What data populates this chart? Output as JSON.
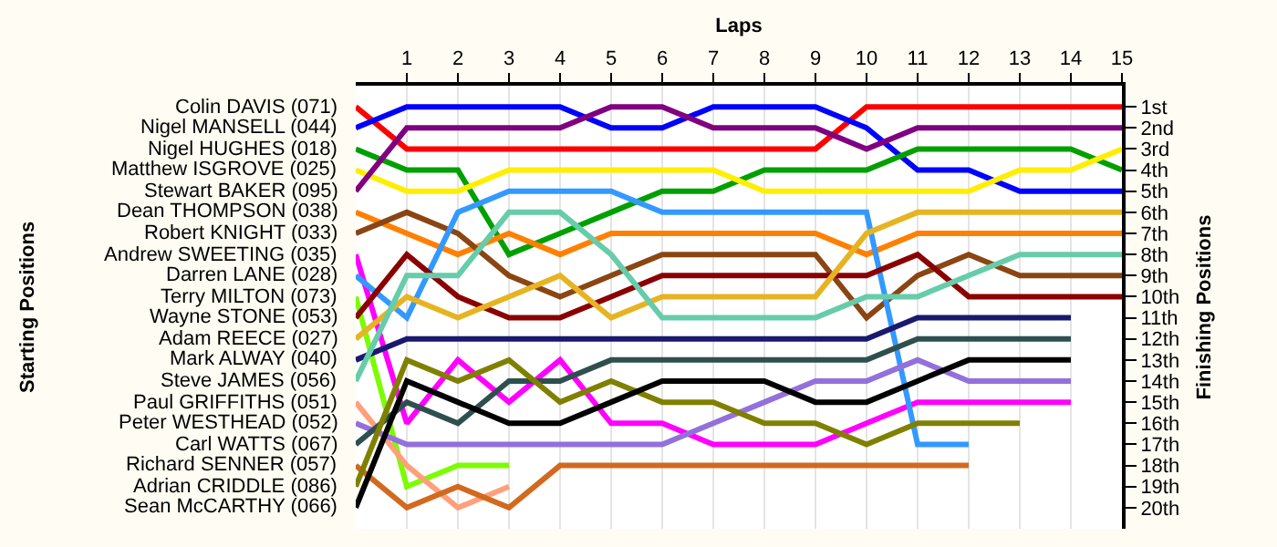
{
  "chart_data": {
    "type": "line",
    "xlabel": "Laps",
    "annotations": [
      "Starting Positions"
    ],
    "y2label": "Finishing Positions",
    "x": [
      0,
      1,
      2,
      3,
      4,
      5,
      6,
      7,
      8,
      9,
      10,
      11,
      12,
      13,
      14,
      15
    ],
    "xlim": [
      0,
      15
    ],
    "xticks": [
      1,
      2,
      3,
      4,
      5,
      6,
      7,
      8,
      9,
      10,
      11,
      12,
      13,
      14,
      15
    ],
    "y2lim": [
      21,
      0
    ],
    "y2ticks": [
      {
        "value": 1,
        "label": "1st"
      },
      {
        "value": 2,
        "label": "2nd"
      },
      {
        "value": 3,
        "label": "3rd"
      },
      {
        "value": 4,
        "label": "4th"
      },
      {
        "value": 5,
        "label": "5th"
      },
      {
        "value": 6,
        "label": "6th"
      },
      {
        "value": 7,
        "label": "7th"
      },
      {
        "value": 8,
        "label": "8th"
      },
      {
        "value": 9,
        "label": "9th"
      },
      {
        "value": 10,
        "label": "10th"
      },
      {
        "value": 11,
        "label": "11th"
      },
      {
        "value": 12,
        "label": "12th"
      },
      {
        "value": 13,
        "label": "13th"
      },
      {
        "value": 14,
        "label": "14th"
      },
      {
        "value": 15,
        "label": "15th"
      },
      {
        "value": 16,
        "label": "16th"
      },
      {
        "value": 17,
        "label": "17th"
      },
      {
        "value": 18,
        "label": "18th"
      },
      {
        "value": 19,
        "label": "19th"
      },
      {
        "value": 20,
        "label": "20th"
      }
    ],
    "grid": true,
    "series": [
      {
        "name": "Colin DAVIS (071)",
        "axis": "y2",
        "color": "#ff0000",
        "values": [
          1,
          3,
          3,
          3,
          3,
          3,
          3,
          3,
          3,
          3,
          1,
          1,
          1,
          1,
          1,
          1
        ]
      },
      {
        "name": "Nigel MANSELL (044)",
        "axis": "y2",
        "color": "#0000ff",
        "values": [
          2,
          1,
          1,
          1,
          1,
          2,
          2,
          1,
          1,
          1,
          2,
          4,
          4,
          5,
          5,
          5
        ]
      },
      {
        "name": "Nigel HUGHES (018)",
        "axis": "y2",
        "color": "#00a000",
        "values": [
          3,
          4,
          4,
          8,
          7,
          6,
          5,
          5,
          4,
          4,
          4,
          3,
          3,
          3,
          3,
          4
        ]
      },
      {
        "name": "Matthew ISGROVE (025)",
        "axis": "y2",
        "color": "#ffee00",
        "values": [
          4,
          5,
          5,
          4,
          4,
          4,
          4,
          4,
          5,
          5,
          5,
          5,
          5,
          4,
          4,
          3
        ]
      },
      {
        "name": "Stewart BAKER (095)",
        "axis": "y2",
        "color": "#800080",
        "values": [
          5,
          2,
          2,
          2,
          2,
          1,
          1,
          2,
          2,
          2,
          3,
          2,
          2,
          2,
          2,
          2
        ]
      },
      {
        "name": "Dean THOMPSON (038)",
        "axis": "y2",
        "color": "#ff8000",
        "values": [
          6,
          7,
          8,
          7,
          8,
          7,
          7,
          7,
          7,
          7,
          8,
          7,
          7,
          7,
          7,
          7
        ]
      },
      {
        "name": "Robert KNIGHT (033)",
        "axis": "y2",
        "color": "#8b4513",
        "values": [
          7,
          6,
          7,
          9,
          10,
          9,
          8,
          8,
          8,
          8,
          11,
          9,
          8,
          9,
          9,
          9
        ]
      },
      {
        "name": "Andrew SWEETING (035)",
        "axis": "y2",
        "color": "#ff00ff",
        "values": [
          8,
          16,
          13,
          15,
          13,
          16,
          16,
          17,
          17,
          17,
          16,
          15,
          15,
          15,
          15,
          null
        ]
      },
      {
        "name": "Darren LANE (028)",
        "axis": "y2",
        "color": "#3399ff",
        "values": [
          9,
          11,
          6,
          5,
          5,
          5,
          6,
          6,
          6,
          6,
          6,
          17,
          17,
          null,
          null,
          null
        ]
      },
      {
        "name": "Terry MILTON (073)",
        "axis": "y2",
        "color": "#7cfc00",
        "values": [
          10,
          19,
          18,
          18,
          null,
          null,
          null,
          null,
          null,
          null,
          null,
          null,
          null,
          null,
          null,
          null
        ]
      },
      {
        "name": "Wayne STONE (053)",
        "axis": "y2",
        "color": "#8b0000",
        "values": [
          11,
          8,
          10,
          11,
          11,
          10,
          9,
          9,
          9,
          9,
          9,
          8,
          10,
          10,
          10,
          10
        ]
      },
      {
        "name": "Adam REECE (027)",
        "axis": "y2",
        "color": "#e6b422",
        "values": [
          12,
          10,
          11,
          10,
          9,
          11,
          10,
          10,
          10,
          10,
          7,
          6,
          6,
          6,
          6,
          6
        ]
      },
      {
        "name": "Mark ALWAY (040)",
        "axis": "y2",
        "color": "#191970",
        "values": [
          13,
          12,
          12,
          12,
          12,
          12,
          12,
          12,
          12,
          12,
          12,
          11,
          11,
          11,
          11,
          null
        ]
      },
      {
        "name": "Steve JAMES (056)",
        "axis": "y2",
        "color": "#66ccaa",
        "values": [
          14,
          9,
          9,
          6,
          6,
          8,
          11,
          11,
          11,
          11,
          10,
          10,
          9,
          8,
          8,
          8
        ]
      },
      {
        "name": "Paul GRIFFITHS (051)",
        "axis": "y2",
        "color": "#ffa07a",
        "values": [
          15,
          18,
          20,
          19,
          null,
          null,
          null,
          null,
          null,
          null,
          null,
          null,
          null,
          null,
          null,
          null
        ]
      },
      {
        "name": "Peter WESTHEAD (052)",
        "axis": "y2",
        "color": "#9370db",
        "values": [
          16,
          17,
          17,
          17,
          17,
          17,
          17,
          16,
          15,
          14,
          14,
          13,
          14,
          14,
          14,
          null
        ]
      },
      {
        "name": "Carl WATTS (067)",
        "axis": "y2",
        "color": "#2f4f4f",
        "values": [
          17,
          15,
          16,
          14,
          14,
          13,
          13,
          13,
          13,
          13,
          13,
          12,
          12,
          12,
          12,
          null
        ]
      },
      {
        "name": "Richard SENNER (057)",
        "axis": "y2",
        "color": "#d2691e",
        "values": [
          18,
          20,
          19,
          20,
          18,
          18,
          18,
          18,
          18,
          18,
          18,
          18,
          18,
          null,
          null,
          null
        ]
      },
      {
        "name": "Adrian CRIDDLE (086)",
        "axis": "y2",
        "color": "#808000",
        "values": [
          19,
          13,
          14,
          13,
          15,
          14,
          15,
          15,
          16,
          16,
          17,
          16,
          16,
          16,
          null,
          null
        ]
      },
      {
        "name": "Sean McCARTHY (066)",
        "axis": "y2",
        "color": "#000000",
        "values": [
          20,
          14,
          15,
          16,
          16,
          15,
          14,
          14,
          14,
          15,
          15,
          14,
          13,
          13,
          13,
          null
        ]
      }
    ]
  }
}
